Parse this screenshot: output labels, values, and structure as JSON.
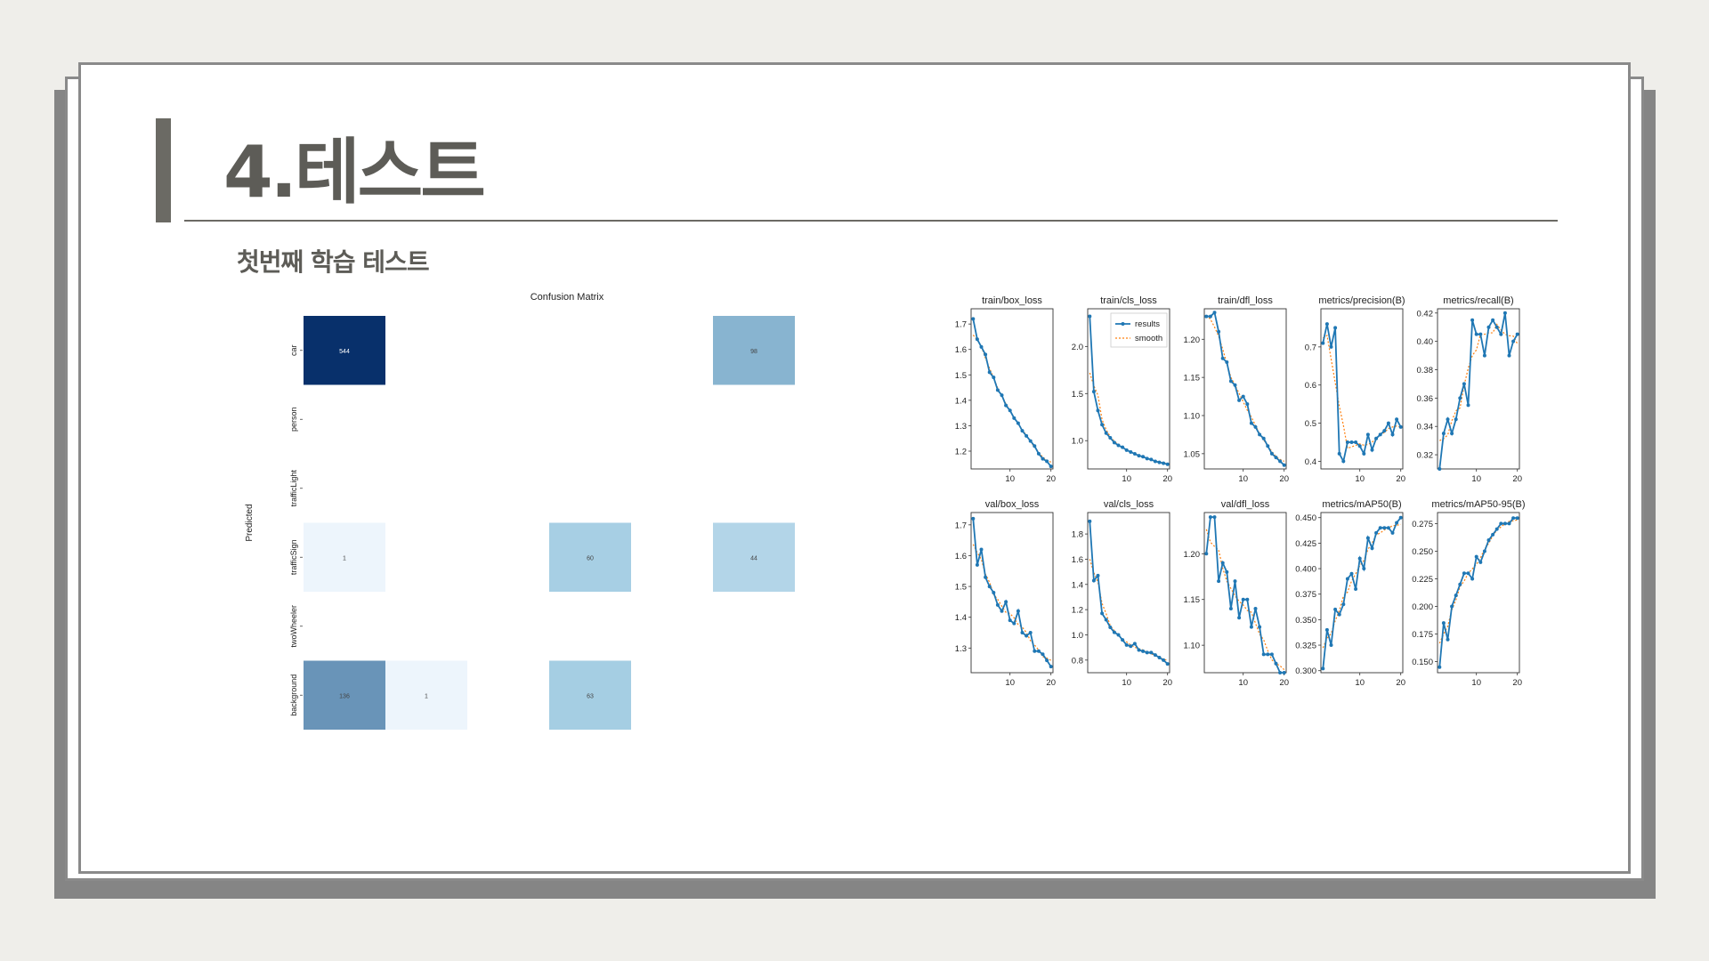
{
  "slide": {
    "title": "4.테스트",
    "subtitle": "첫번째 학습 테스트"
  },
  "colors": {
    "accent": "#6b6a64",
    "heat_dark": "#08306b",
    "heat_light": "#f7fbff",
    "line": "#1f77b4",
    "smooth": "#ff7f0e"
  },
  "chart_data": [
    {
      "type": "heatmap",
      "title": "Confusion Matrix",
      "ylabel": "Predicted",
      "y_categories": [
        "car",
        "person",
        "trafficLight",
        "trafficSign",
        "twoWheeler",
        "background"
      ],
      "columns": 6,
      "vmax": 544,
      "cells": [
        {
          "row": 0,
          "col": 0,
          "value": 544
        },
        {
          "row": 0,
          "col": 5,
          "value": 98
        },
        {
          "row": 3,
          "col": 0,
          "value": 1
        },
        {
          "row": 3,
          "col": 3,
          "value": 60
        },
        {
          "row": 3,
          "col": 5,
          "value": 44
        },
        {
          "row": 5,
          "col": 0,
          "value": 136
        },
        {
          "row": 5,
          "col": 1,
          "value": 1
        },
        {
          "row": 5,
          "col": 3,
          "value": 63
        }
      ],
      "colorbar": true
    },
    {
      "type": "line",
      "grid": false,
      "legend": {
        "entries": [
          "results",
          "smooth"
        ],
        "position": "top-right",
        "panel": 1
      },
      "x": [
        1,
        2,
        3,
        4,
        5,
        6,
        7,
        8,
        9,
        10,
        11,
        12,
        13,
        14,
        15,
        16,
        17,
        18,
        19,
        20
      ],
      "xticks": [
        10,
        20
      ],
      "panels": [
        {
          "title": "train/box_loss",
          "ylim": [
            1.13,
            1.76
          ],
          "yticks": [
            1.2,
            1.3,
            1.4,
            1.5,
            1.6,
            1.7
          ],
          "tick_decimals": 1,
          "values": [
            1.72,
            1.64,
            1.61,
            1.58,
            1.51,
            1.49,
            1.44,
            1.42,
            1.38,
            1.36,
            1.33,
            1.31,
            1.28,
            1.26,
            1.24,
            1.22,
            1.19,
            1.17,
            1.16,
            1.14
          ]
        },
        {
          "title": "train/cls_loss",
          "ylim": [
            0.7,
            2.4
          ],
          "yticks": [
            1.0,
            1.5,
            2.0
          ],
          "tick_decimals": 1,
          "values": [
            2.32,
            1.52,
            1.32,
            1.17,
            1.08,
            1.03,
            0.98,
            0.95,
            0.93,
            0.9,
            0.88,
            0.86,
            0.84,
            0.83,
            0.81,
            0.8,
            0.78,
            0.77,
            0.76,
            0.75
          ]
        },
        {
          "title": "train/dfl_loss",
          "ylim": [
            1.03,
            1.24
          ],
          "yticks": [
            1.05,
            1.1,
            1.15,
            1.2
          ],
          "tick_decimals": 2,
          "values": [
            1.23,
            1.23,
            1.235,
            1.21,
            1.175,
            1.17,
            1.145,
            1.14,
            1.12,
            1.125,
            1.115,
            1.09,
            1.085,
            1.075,
            1.07,
            1.06,
            1.05,
            1.045,
            1.04,
            1.035
          ]
        },
        {
          "title": "metrics/precision(B)",
          "ylim": [
            0.38,
            0.8
          ],
          "yticks": [
            0.4,
            0.5,
            0.6,
            0.7
          ],
          "tick_decimals": 1,
          "values": [
            0.71,
            0.76,
            0.7,
            0.75,
            0.42,
            0.4,
            0.45,
            0.45,
            0.45,
            0.44,
            0.42,
            0.47,
            0.43,
            0.46,
            0.47,
            0.48,
            0.5,
            0.47,
            0.51,
            0.49
          ]
        },
        {
          "title": "metrics/recall(B)",
          "ylim": [
            0.31,
            0.423
          ],
          "yticks": [
            0.32,
            0.34,
            0.36,
            0.38,
            0.4,
            0.42
          ],
          "tick_decimals": 2,
          "values": [
            0.31,
            0.335,
            0.345,
            0.335,
            0.345,
            0.36,
            0.37,
            0.355,
            0.415,
            0.405,
            0.405,
            0.39,
            0.41,
            0.415,
            0.41,
            0.405,
            0.42,
            0.39,
            0.4,
            0.405
          ]
        },
        {
          "title": "val/box_loss",
          "ylim": [
            1.22,
            1.74
          ],
          "yticks": [
            1.3,
            1.4,
            1.5,
            1.6,
            1.7
          ],
          "tick_decimals": 1,
          "values": [
            1.72,
            1.57,
            1.62,
            1.53,
            1.5,
            1.48,
            1.44,
            1.42,
            1.45,
            1.39,
            1.38,
            1.42,
            1.35,
            1.34,
            1.35,
            1.29,
            1.29,
            1.28,
            1.26,
            1.24
          ]
        },
        {
          "title": "val/cls_loss",
          "ylim": [
            0.7,
            1.97
          ],
          "yticks": [
            0.8,
            1.0,
            1.2,
            1.4,
            1.6,
            1.8
          ],
          "tick_decimals": 1,
          "values": [
            1.9,
            1.43,
            1.47,
            1.17,
            1.12,
            1.06,
            1.02,
            1.0,
            0.96,
            0.92,
            0.91,
            0.93,
            0.88,
            0.87,
            0.86,
            0.86,
            0.84,
            0.82,
            0.8,
            0.77
          ]
        },
        {
          "title": "val/dfl_loss",
          "ylim": [
            1.07,
            1.245
          ],
          "yticks": [
            1.1,
            1.15,
            1.2
          ],
          "tick_decimals": 2,
          "values": [
            1.2,
            1.24,
            1.24,
            1.17,
            1.19,
            1.18,
            1.14,
            1.17,
            1.13,
            1.15,
            1.15,
            1.12,
            1.14,
            1.12,
            1.09,
            1.09,
            1.09,
            1.08,
            1.07,
            1.07
          ]
        },
        {
          "title": "metrics/mAP50(B)",
          "ylim": [
            0.298,
            0.455
          ],
          "yticks": [
            0.3,
            0.325,
            0.35,
            0.375,
            0.4,
            0.425,
            0.45
          ],
          "tick_decimals": 3,
          "values": [
            0.302,
            0.34,
            0.325,
            0.36,
            0.355,
            0.365,
            0.39,
            0.395,
            0.38,
            0.41,
            0.4,
            0.43,
            0.42,
            0.435,
            0.44,
            0.44,
            0.44,
            0.435,
            0.445,
            0.45
          ]
        },
        {
          "title": "metrics/mAP50-95(B)",
          "ylim": [
            0.14,
            0.285
          ],
          "yticks": [
            0.15,
            0.175,
            0.2,
            0.225,
            0.25,
            0.275
          ],
          "tick_decimals": 3,
          "values": [
            0.145,
            0.185,
            0.17,
            0.2,
            0.21,
            0.22,
            0.23,
            0.23,
            0.225,
            0.245,
            0.24,
            0.25,
            0.26,
            0.265,
            0.27,
            0.275,
            0.275,
            0.275,
            0.28,
            0.28
          ]
        }
      ]
    }
  ]
}
